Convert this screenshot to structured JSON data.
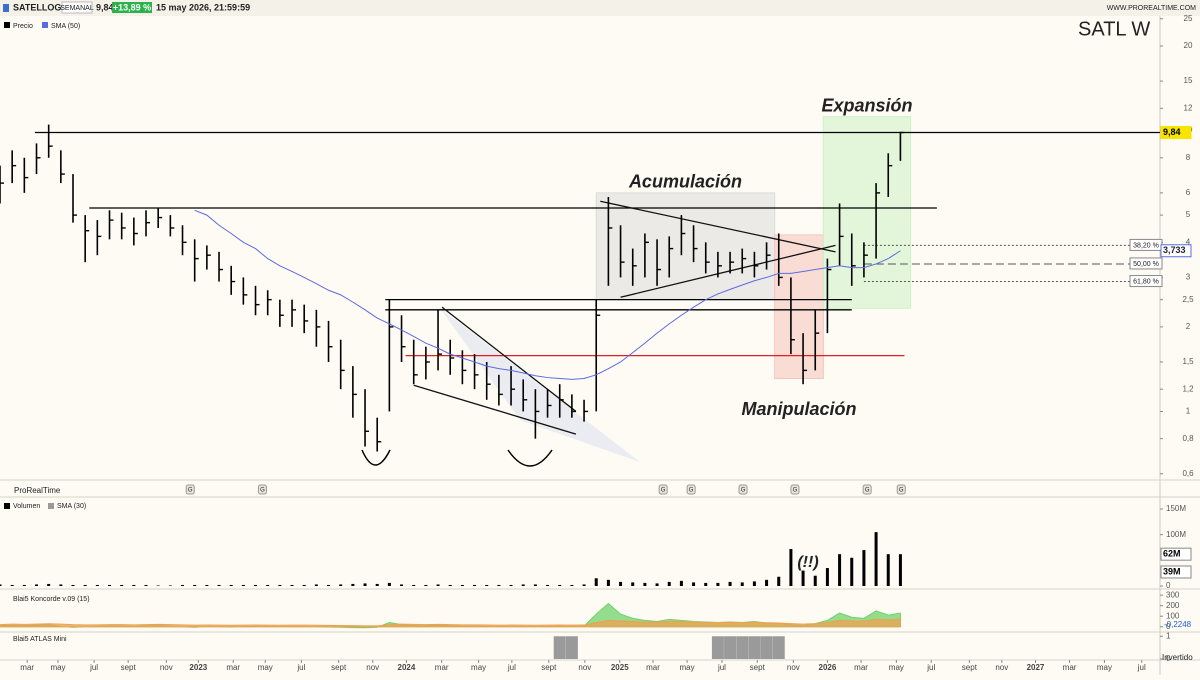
{
  "header": {
    "symbol": "SATELLOGIC",
    "period": "SEMANAL",
    "price": "9,84",
    "change": "+13,89 %",
    "datetime": "15 may 2026, 21:59:59",
    "site": "WWW.PROREALTIME.COM",
    "ticker_tag": "SATL  W",
    "platform": "ProRealTime",
    "footer": "Invertido"
  },
  "chart_data": [
    {
      "type": "ohlc",
      "x": [
        0,
        3,
        6,
        9,
        12,
        15,
        18,
        21,
        24,
        27,
        30,
        33,
        36,
        39,
        42,
        45,
        48,
        51,
        54,
        57,
        60,
        63,
        66,
        69,
        72,
        75,
        78,
        81,
        84,
        87,
        90,
        93,
        96,
        99,
        102,
        105,
        108,
        111,
        114,
        117,
        120,
        123,
        126,
        129,
        132,
        135,
        138,
        141,
        144,
        147,
        150,
        153,
        156,
        159,
        162,
        165,
        168,
        171,
        174,
        177,
        180,
        183,
        186,
        189,
        192,
        195,
        198,
        201,
        204,
        207,
        210,
        213,
        216,
        219,
        222
      ],
      "series": [
        {
          "name": "Precio",
          "color": "#000000",
          "high": [
            7.5,
            8.5,
            8.0,
            9.0,
            10.5,
            8.5,
            7.0,
            5.0,
            4.8,
            5.2,
            5.1,
            4.9,
            5.2,
            5.3,
            5.0,
            4.6,
            4.1,
            3.9,
            3.7,
            3.3,
            3.0,
            2.8,
            2.7,
            2.5,
            2.5,
            2.4,
            2.3,
            2.1,
            1.8,
            1.45,
            1.2,
            0.95,
            2.5,
            2.2,
            1.8,
            1.7,
            2.3,
            1.8,
            1.65,
            1.6,
            1.5,
            1.35,
            1.45,
            1.3,
            1.2,
            1.2,
            1.25,
            1.15,
            1.1,
            2.5,
            5.8,
            4.6,
            3.8,
            4.3,
            4.1,
            4.2,
            5.0,
            4.6,
            4.0,
            3.7,
            3.7,
            3.8,
            3.7,
            4.0,
            4.3,
            3.0,
            1.9,
            2.3,
            3.5,
            5.5,
            4.3,
            4.0,
            6.5,
            8.3,
            9.9
          ],
          "low": [
            5.5,
            6.5,
            6.0,
            7.0,
            8.0,
            6.5,
            4.7,
            3.4,
            3.6,
            4.1,
            4.1,
            3.9,
            4.2,
            4.5,
            4.2,
            3.6,
            2.9,
            3.2,
            2.9,
            2.6,
            2.4,
            2.2,
            2.2,
            2.0,
            2.0,
            1.9,
            1.7,
            1.5,
            1.2,
            0.95,
            0.75,
            0.72,
            1.0,
            1.5,
            1.25,
            1.3,
            1.4,
            1.35,
            1.25,
            1.2,
            1.1,
            1.05,
            1.05,
            1.0,
            0.8,
            0.95,
            0.95,
            0.95,
            0.92,
            1.0,
            2.8,
            3.0,
            2.8,
            3.0,
            2.8,
            3.0,
            3.6,
            3.4,
            3.1,
            3.0,
            3.1,
            3.1,
            3.0,
            3.2,
            2.8,
            1.6,
            1.25,
            1.4,
            1.9,
            3.3,
            2.8,
            3.0,
            3.5,
            5.8,
            7.8
          ],
          "close": [
            6.5,
            7.5,
            6.8,
            8.0,
            8.8,
            7.0,
            5.0,
            4.4,
            4.2,
            4.8,
            4.5,
            4.3,
            4.7,
            4.9,
            4.5,
            4.0,
            3.5,
            3.6,
            3.2,
            2.9,
            2.6,
            2.4,
            2.5,
            2.2,
            2.3,
            2.1,
            2.0,
            1.7,
            1.4,
            1.15,
            0.85,
            0.78,
            2.0,
            1.7,
            1.35,
            1.5,
            1.6,
            1.55,
            1.4,
            1.35,
            1.25,
            1.15,
            1.2,
            1.1,
            1.0,
            1.05,
            1.1,
            1.0,
            1.0,
            2.2,
            4.5,
            3.4,
            3.3,
            4.0,
            3.2,
            3.8,
            4.3,
            3.8,
            3.4,
            3.3,
            3.4,
            3.5,
            3.3,
            3.6,
            3.0,
            1.8,
            1.4,
            1.9,
            3.2,
            4.2,
            3.3,
            3.6,
            6.0,
            7.5,
            9.84
          ]
        },
        {
          "name": "SMA (50)",
          "color": "#5b6be0",
          "values": [
            null,
            null,
            null,
            null,
            null,
            null,
            null,
            null,
            null,
            null,
            null,
            null,
            null,
            null,
            null,
            null,
            5.2,
            5.0,
            4.6,
            4.3,
            4.0,
            3.8,
            3.5,
            3.3,
            3.15,
            3.0,
            2.85,
            2.7,
            2.6,
            2.45,
            2.3,
            2.15,
            2.05,
            1.95,
            1.85,
            1.75,
            1.68,
            1.6,
            1.55,
            1.5,
            1.45,
            1.42,
            1.4,
            1.37,
            1.34,
            1.32,
            1.31,
            1.3,
            1.31,
            1.35,
            1.42,
            1.5,
            1.62,
            1.75,
            1.9,
            2.05,
            2.2,
            2.35,
            2.5,
            2.62,
            2.72,
            2.82,
            2.92,
            3.0,
            3.1,
            3.1,
            3.15,
            3.2,
            3.25,
            3.3,
            3.25,
            3.25,
            3.35,
            3.5,
            3.733
          ]
        }
      ],
      "last_label": {
        "value": 9.84,
        "label": "9,84"
      },
      "sma_label": {
        "value": 3.733,
        "label": "3,733"
      },
      "log_scale": true,
      "ylim": [
        0.57,
        26
      ],
      "yticks": [
        25,
        20,
        15,
        12,
        10,
        8,
        6,
        5,
        4,
        3,
        {
          "value": 2.5,
          "label": "2,5"
        },
        2,
        {
          "value": 1.5,
          "label": "1,5"
        },
        {
          "value": 1.2,
          "label": "1,2"
        },
        1,
        {
          "value": 0.8,
          "label": "0,8"
        },
        {
          "value": 0.6,
          "label": "0,6"
        }
      ],
      "xlim": [
        0,
        286
      ],
      "xticks": [
        {
          "value": 6.7,
          "label": "mar"
        },
        {
          "value": 14.3,
          "label": "may"
        },
        {
          "value": 23.2,
          "label": "jul"
        },
        {
          "value": 31.6,
          "label": "sept"
        },
        {
          "value": 41,
          "label": "nov"
        },
        {
          "value": 48.9,
          "label": "2023"
        },
        {
          "value": 57.5,
          "label": "mar"
        },
        {
          "value": 65.4,
          "label": "may"
        },
        {
          "value": 74.3,
          "label": "jul"
        },
        {
          "value": 83.5,
          "label": "sept"
        },
        {
          "value": 91.9,
          "label": "nov"
        },
        {
          "value": 100.2,
          "label": "2024"
        },
        {
          "value": 108.9,
          "label": "mar"
        },
        {
          "value": 118,
          "label": "may"
        },
        {
          "value": 126.2,
          "label": "jul"
        },
        {
          "value": 135.3,
          "label": "sept"
        },
        {
          "value": 144.2,
          "label": "nov"
        },
        {
          "value": 152.8,
          "label": "2025"
        },
        {
          "value": 161,
          "label": "mar"
        },
        {
          "value": 169.4,
          "label": "may"
        },
        {
          "value": 178,
          "label": "jul"
        },
        {
          "value": 186.7,
          "label": "sept"
        },
        {
          "value": 195.6,
          "label": "nov"
        },
        {
          "value": 204,
          "label": "2026"
        },
        {
          "value": 212.3,
          "label": "mar"
        },
        {
          "value": 221,
          "label": "may"
        },
        {
          "value": 229.6,
          "label": "jul"
        },
        {
          "value": 239,
          "label": "sept"
        },
        {
          "value": 247,
          "label": "nov"
        },
        {
          "value": 255.3,
          "label": "2027"
        },
        {
          "value": 263.7,
          "label": "mar"
        },
        {
          "value": 272.3,
          "label": "may"
        },
        {
          "value": 281.5,
          "label": "jul"
        }
      ],
      "levels": [
        {
          "value": 9.84,
          "x": [
            8.6,
            286
          ],
          "color": "#000000"
        },
        {
          "value": 5.3,
          "x": [
            22,
            231
          ],
          "color": "#000000"
        },
        {
          "value": 2.5,
          "x": [
            95,
            210
          ],
          "color": "#000000"
        },
        {
          "value": 2.3,
          "x": [
            95,
            210
          ],
          "color": "#000000"
        },
        {
          "value": 1.58,
          "x": [
            100,
            223
          ],
          "color": "#e02020"
        }
      ],
      "fib_levels": [
        {
          "value": 3.9,
          "label": "38,20 %"
        },
        {
          "value": 3.35,
          "label": "50,00 %"
        },
        {
          "value": 2.9,
          "label": "61,80 %"
        }
      ],
      "fib_x": [
        213,
        286
      ],
      "zones": [
        {
          "label": "Acumulación",
          "x": [
            147,
            191
          ],
          "y": [
            2.5,
            6
          ],
          "color": "#dcdcdc",
          "label_side": "top"
        },
        {
          "label": "Manipulación",
          "x": [
            191,
            203
          ],
          "y": [
            1.31,
            4.25
          ],
          "color": "#f6c4bc",
          "label_side": "bottom"
        },
        {
          "label": "Expansión",
          "x": [
            203,
            224.5
          ],
          "y": [
            2.33,
            11.2
          ],
          "color": "#cdf2c4",
          "label_side": "top"
        }
      ],
      "trend_lines": [
        {
          "x": [
            148,
            206
          ],
          "y": [
            5.6,
            3.7
          ]
        },
        {
          "x": [
            153,
            206
          ],
          "y": [
            2.55,
            3.9
          ]
        },
        {
          "x": [
            109,
            142
          ],
          "y": [
            2.35,
            1.0
          ]
        },
        {
          "x": [
            102,
            142
          ],
          "y": [
            1.24,
            0.83
          ]
        }
      ],
      "events": {
        "label": "G",
        "x": [
          46.9,
          64.7,
          163.5,
          170.4,
          183.2,
          196,
          213.8,
          222.2
        ]
      }
    },
    {
      "type": "bar",
      "series": [
        {
          "name": "Volumen",
          "color": "#000000",
          "values": [
            3000000,
            2000000,
            2000000,
            3000000,
            4000000,
            3000000,
            2000000,
            2000000,
            2000000,
            2000000,
            2000000,
            2000000,
            2000000,
            1000000,
            1000000,
            2000000,
            2000000,
            2000000,
            2000000,
            2000000,
            2000000,
            2000000,
            2000000,
            2000000,
            2000000,
            2000000,
            3000000,
            2000000,
            3000000,
            4000000,
            5000000,
            4000000,
            6000000,
            3000000,
            2000000,
            2000000,
            3000000,
            2000000,
            2000000,
            2000000,
            2000000,
            2000000,
            2000000,
            3000000,
            3000000,
            2000000,
            2000000,
            2000000,
            3000000,
            15000000,
            12000000,
            8000000,
            7000000,
            6000000,
            5000000,
            8000000,
            10000000,
            7000000,
            6000000,
            6000000,
            8000000,
            7000000,
            9000000,
            12000000,
            18000000,
            72000000,
            30000000,
            20000000,
            35000000,
            62000000,
            55000000,
            70000000,
            105000000,
            62000000,
            62000000
          ]
        },
        {
          "name": "SMA (30)",
          "color": "#9a9a9a",
          "last": {
            "value": 39000000,
            "label": "39M"
          }
        }
      ],
      "last_label": {
        "value": 62000000,
        "label": "62M"
      },
      "ylim": [
        0,
        150000000
      ],
      "yticks": [
        {
          "value": 150000000,
          "label": "150M"
        },
        {
          "value": 100000000,
          "label": "100M"
        },
        0
      ],
      "annotation": "(!!)"
    },
    {
      "type": "area",
      "title": "Blai5 Koncorde v.09 (15)",
      "series": [
        {
          "color": "#6fd36a",
          "values": [
            10,
            12,
            8,
            15,
            20,
            5,
            -5,
            0,
            5,
            8,
            6,
            4,
            8,
            10,
            5,
            0,
            -5,
            2,
            0,
            -3,
            2,
            4,
            3,
            0,
            2,
            1,
            0,
            -2,
            -5,
            -8,
            -10,
            -5,
            40,
            20,
            10,
            8,
            15,
            10,
            5,
            5,
            3,
            2,
            4,
            2,
            0,
            3,
            5,
            4,
            6,
            120,
            220,
            120,
            80,
            60,
            50,
            70,
            60,
            50,
            45,
            40,
            45,
            40,
            50,
            35,
            30,
            20,
            10,
            30,
            60,
            130,
            90,
            80,
            150,
            110,
            130
          ]
        },
        {
          "color": "#f0a050",
          "values": [
            20,
            25,
            22,
            25,
            28,
            25,
            20,
            18,
            18,
            20,
            20,
            18,
            20,
            22,
            20,
            18,
            15,
            16,
            15,
            14,
            15,
            16,
            15,
            14,
            15,
            15,
            14,
            13,
            12,
            10,
            8,
            8,
            20,
            25,
            22,
            20,
            22,
            20,
            18,
            18,
            16,
            15,
            16,
            15,
            14,
            15,
            16,
            15,
            16,
            40,
            60,
            55,
            50,
            45,
            45,
            50,
            48,
            45,
            42,
            40,
            42,
            40,
            42,
            38,
            35,
            30,
            25,
            30,
            40,
            60,
            55,
            55,
            70,
            65,
            70
          ]
        }
      ],
      "current": {
        "value": -0.2248,
        "label": "-0,2248"
      },
      "ylim": [
        -50,
        330
      ],
      "yticks": [
        300,
        200,
        100,
        0
      ]
    },
    {
      "type": "bar",
      "title": "Blai5 ATLAS Mini",
      "values": [
        0,
        0,
        0,
        0,
        0,
        0,
        0,
        0,
        0,
        0,
        0,
        0,
        0,
        0,
        0,
        0,
        0,
        0,
        0,
        0,
        0,
        0,
        0,
        0,
        0,
        0,
        0,
        0,
        0,
        0,
        0,
        0,
        0,
        0,
        0,
        0,
        0,
        0,
        0,
        0,
        0,
        0,
        0,
        0,
        0,
        0,
        1,
        1,
        0,
        0,
        0,
        0,
        0,
        0,
        0,
        0,
        0,
        0,
        0,
        1,
        1,
        1,
        1,
        1,
        1,
        0,
        0,
        0,
        0,
        0,
        0,
        0,
        0,
        0,
        0
      ],
      "color": "#9a9a9a",
      "ylim": [
        0,
        1.1
      ],
      "yticks": [
        1,
        0
      ]
    }
  ]
}
